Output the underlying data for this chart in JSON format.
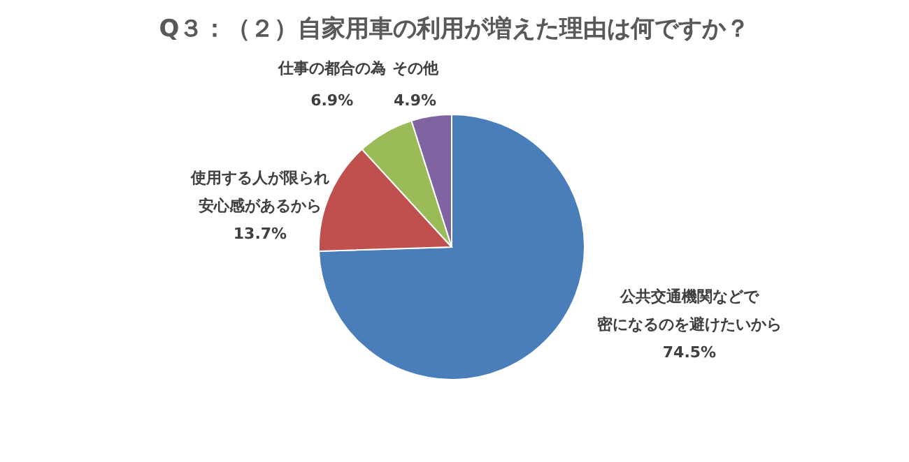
{
  "chart_data": {
    "type": "pie",
    "title": "Q３：（２）自家用車の利用が増えた理由は何ですか？",
    "categories": [
      "公共交通機関などで密になるのを避けたいから",
      "使用する人が限られ安心感があるから",
      "仕事の都合の為",
      "その他"
    ],
    "values": [
      74.5,
      13.7,
      6.9,
      4.9
    ],
    "value_labels": [
      "74.5%",
      "13.7%",
      "6.9%",
      "4.9%"
    ],
    "colors": [
      "#4a7ebb",
      "#c0504d",
      "#9bbb59",
      "#8064a2"
    ]
  }
}
